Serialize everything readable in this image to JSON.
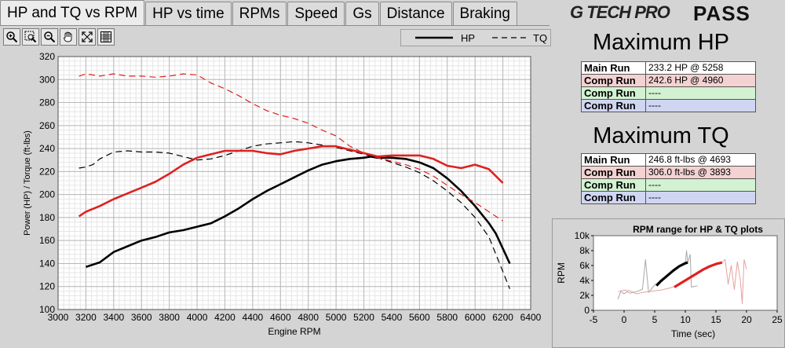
{
  "tabs": [
    {
      "label": "HP and TQ vs RPM",
      "active": true
    },
    {
      "label": "HP vs time",
      "active": false
    },
    {
      "label": "RPMs",
      "active": false
    },
    {
      "label": "Speed",
      "active": false
    },
    {
      "label": "Gs",
      "active": false
    },
    {
      "label": "Distance",
      "active": false
    },
    {
      "label": "Braking",
      "active": false
    }
  ],
  "logo": {
    "brand": "G TECH PRO",
    "product": "PASS"
  },
  "toolbar": [
    "zoom-in-icon",
    "zoom-box-icon",
    "zoom-out-icon",
    "pan-hand-icon",
    "fit-icon",
    "grid-icon"
  ],
  "legend": {
    "hp_label": "HP",
    "tq_label": "TQ"
  },
  "max_hp": {
    "title": "Maximum HP",
    "rows": [
      {
        "label": "Main Run",
        "value": "233.2 HP @ 5258"
      },
      {
        "label": "Comp Run",
        "value": "242.6 HP @ 4960"
      },
      {
        "label": "Comp Run",
        "value": "----"
      },
      {
        "label": "Comp Run",
        "value": "----"
      }
    ]
  },
  "max_tq": {
    "title": "Maximum TQ",
    "rows": [
      {
        "label": "Main Run",
        "value": "246.8 ft-lbs @ 4693"
      },
      {
        "label": "Comp Run",
        "value": "306.0 ft-lbs @ 3893"
      },
      {
        "label": "Comp Run",
        "value": "----"
      },
      {
        "label": "Comp Run",
        "value": "----"
      }
    ]
  },
  "colors": {
    "main": "#000000",
    "comp": "#e02020"
  },
  "chart_data": [
    {
      "type": "line",
      "title": "",
      "xlabel": "Engine RPM",
      "ylabel": "Power (HP) / Torque (ft-lbs)",
      "xlim": [
        3000,
        6400
      ],
      "ylim": [
        100,
        320
      ],
      "xticks": [
        3000,
        3200,
        3400,
        3600,
        3800,
        4000,
        4200,
        4400,
        4600,
        4800,
        5000,
        5200,
        5400,
        5600,
        5800,
        6000,
        6200,
        6400
      ],
      "yticks": [
        100,
        120,
        140,
        160,
        180,
        200,
        220,
        240,
        260,
        280,
        300,
        320
      ],
      "grid": true,
      "legend_position": "top-right",
      "series": [
        {
          "name": "HP",
          "run": "main",
          "dash": false,
          "x": [
            3200,
            3300,
            3400,
            3500,
            3600,
            3700,
            3800,
            3900,
            4000,
            4100,
            4200,
            4300,
            4400,
            4500,
            4600,
            4700,
            4800,
            4900,
            5000,
            5100,
            5200,
            5250,
            5300,
            5400,
            5500,
            5600,
            5700,
            5800,
            5900,
            6000,
            6100,
            6150,
            6200,
            6250
          ],
          "y": [
            137,
            141,
            150,
            155,
            160,
            163,
            167,
            169,
            172,
            175,
            181,
            188,
            196,
            203,
            209,
            215,
            221,
            226,
            229,
            231,
            232,
            233,
            232,
            232,
            231,
            228,
            223,
            214,
            203,
            190,
            175,
            166,
            153,
            140
          ]
        },
        {
          "run": "main",
          "dash": true,
          "x": [
            3150,
            3200,
            3250,
            3300,
            3400,
            3500,
            3600,
            3700,
            3800,
            3900,
            4000,
            4100,
            4200,
            4300,
            4400,
            4500,
            4600,
            4700,
            4800,
            4900,
            5000,
            5100,
            5200,
            5300,
            5400,
            5500,
            5600,
            5700,
            5800,
            5900,
            6000,
            6100,
            6200,
            6250
          ],
          "y": [
            223,
            224,
            226,
            231,
            237,
            238,
            237,
            237,
            236,
            233,
            230,
            231,
            234,
            238,
            242,
            244,
            245,
            246,
            245,
            243,
            241,
            238,
            235,
            232,
            228,
            224,
            219,
            212,
            203,
            193,
            180,
            163,
            133,
            118
          ]
        },
        {
          "run": "comp",
          "dash": false,
          "x": [
            3150,
            3200,
            3300,
            3400,
            3500,
            3600,
            3700,
            3800,
            3900,
            4000,
            4100,
            4200,
            4300,
            4400,
            4500,
            4600,
            4700,
            4800,
            4900,
            5000,
            5100,
            5200,
            5300,
            5400,
            5500,
            5600,
            5700,
            5800,
            5900,
            6000,
            6100,
            6200
          ],
          "y": [
            181,
            185,
            190,
            196,
            201,
            206,
            211,
            218,
            226,
            232,
            235,
            238,
            238,
            238,
            236,
            235,
            238,
            240,
            242,
            242,
            239,
            236,
            233,
            234,
            234,
            234,
            231,
            225,
            223,
            226,
            222,
            210
          ]
        },
        {
          "run": "comp",
          "dash": true,
          "x": [
            3150,
            3200,
            3300,
            3400,
            3500,
            3600,
            3700,
            3800,
            3900,
            4000,
            4100,
            4200,
            4300,
            4400,
            4500,
            4600,
            4700,
            4800,
            4900,
            5000,
            5100,
            5200,
            5300,
            5400,
            5500,
            5600,
            5700,
            5800,
            5900,
            6000,
            6100,
            6200
          ],
          "y": [
            303,
            305,
            303,
            305,
            303,
            303,
            302,
            303,
            305,
            304,
            297,
            292,
            286,
            279,
            273,
            269,
            266,
            262,
            256,
            251,
            242,
            236,
            232,
            229,
            226,
            222,
            216,
            208,
            200,
            193,
            185,
            177
          ]
        }
      ]
    },
    {
      "type": "line",
      "title": "RPM range for HP & TQ plots",
      "xlabel": "Time (sec)",
      "ylabel": "RPM",
      "xlim": [
        -5,
        25
      ],
      "ylim": [
        0,
        10000
      ],
      "xticks": [
        -5,
        0,
        5,
        10,
        15,
        20,
        25
      ],
      "yticks_labels": [
        "0",
        "2k",
        "4k",
        "6k",
        "8k",
        "10k"
      ],
      "yticks": [
        0,
        2000,
        4000,
        6000,
        8000,
        10000
      ],
      "series": [
        {
          "run": "main-trace",
          "x": [
            -1,
            -0.5,
            0,
            0.5,
            1,
            1.5,
            2,
            3,
            3.5,
            4,
            4.5,
            5,
            6,
            7,
            8,
            9,
            10,
            10.2,
            10.4,
            10.8,
            11,
            11.5,
            12
          ],
          "y": [
            1500,
            2600,
            2200,
            2500,
            2300,
            2400,
            2500,
            2800,
            6800,
            2400,
            2900,
            3400,
            4000,
            4600,
            5200,
            5800,
            6200,
            8000,
            6400,
            7500,
            3100,
            3200,
            3300
          ]
        },
        {
          "run": "main-highlight",
          "x": [
            5.3,
            6,
            7,
            8,
            9,
            10,
            10.4
          ],
          "y": [
            3300,
            3900,
            4600,
            5300,
            5900,
            6300,
            6400
          ]
        },
        {
          "run": "comp-trace",
          "x": [
            -1,
            0,
            1,
            2,
            3,
            4,
            5,
            6,
            7,
            8,
            8.5,
            9,
            10,
            11,
            12,
            13,
            14,
            15,
            16,
            16.5,
            17,
            17.5,
            18,
            18.5,
            19,
            19.3,
            19.6,
            20
          ],
          "y": [
            2500,
            2700,
            2600,
            2200,
            2400,
            2500,
            2600,
            2700,
            2900,
            3100,
            3300,
            3500,
            4000,
            4500,
            5000,
            5500,
            5900,
            6200,
            6400,
            6800,
            3500,
            6000,
            2800,
            6500,
            4000,
            900,
            6800,
            5500
          ]
        },
        {
          "run": "comp-highlight",
          "x": [
            8.2,
            9,
            10,
            11,
            12,
            13,
            14,
            15,
            16
          ],
          "y": [
            3100,
            3500,
            4000,
            4500,
            5000,
            5500,
            5900,
            6200,
            6400
          ]
        }
      ]
    }
  ]
}
